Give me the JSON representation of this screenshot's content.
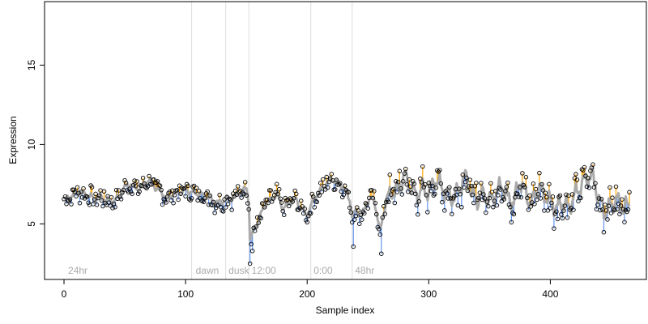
{
  "chart_data": {
    "type": "scatter",
    "xlabel": "Sample index",
    "ylabel": "Expression",
    "xlim": [
      -16,
      479
    ],
    "ylim": [
      1.5,
      19
    ],
    "xticks": [
      0,
      100,
      200,
      300,
      400
    ],
    "yticks": [
      5,
      10,
      15
    ],
    "grid": false,
    "colors": {
      "fit_line": "#aaaaaa",
      "residual_below": "#6495ed",
      "residual_above": "#ffa500",
      "vline": "#dddddd",
      "point_stroke": "#000000"
    },
    "vlines": [
      105,
      133,
      152,
      203,
      237
    ],
    "annotations": [
      {
        "text": "24hr",
        "x": 2
      },
      {
        "text": "dawn",
        "x": 107
      },
      {
        "text": "dusk",
        "x": 134
      },
      {
        "text": "12:00",
        "x": 153
      },
      {
        "text": "0:00",
        "x": 204
      },
      {
        "text": "48hr",
        "x": 238
      }
    ],
    "key_points": [
      [
        0,
        6.5
      ],
      [
        5,
        6.7
      ],
      [
        10,
        7.0
      ],
      [
        15,
        6.9
      ],
      [
        20,
        6.8
      ],
      [
        25,
        6.6
      ],
      [
        30,
        6.7
      ],
      [
        35,
        6.5
      ],
      [
        40,
        6.4
      ],
      [
        45,
        6.7
      ],
      [
        50,
        7.3
      ],
      [
        55,
        7.5
      ],
      [
        60,
        7.2
      ],
      [
        65,
        7.4
      ],
      [
        70,
        7.8
      ],
      [
        75,
        7.3
      ],
      [
        80,
        7.0
      ],
      [
        85,
        6.6
      ],
      [
        90,
        6.9
      ],
      [
        95,
        7.0
      ],
      [
        100,
        7.1
      ],
      [
        105,
        7.0
      ],
      [
        110,
        6.9
      ],
      [
        115,
        6.8
      ],
      [
        120,
        6.6
      ],
      [
        125,
        6.3
      ],
      [
        130,
        6.4
      ],
      [
        135,
        6.6
      ],
      [
        140,
        6.7
      ],
      [
        145,
        7.0
      ],
      [
        150,
        7.2
      ],
      [
        152,
        6.5
      ],
      [
        153,
        4.0
      ],
      [
        156,
        4.6
      ],
      [
        160,
        5.2
      ],
      [
        165,
        6.2
      ],
      [
        170,
        6.5
      ],
      [
        175,
        6.9
      ],
      [
        180,
        6.0
      ],
      [
        185,
        6.3
      ],
      [
        190,
        6.6
      ],
      [
        195,
        6.0
      ],
      [
        200,
        5.5
      ],
      [
        205,
        6.5
      ],
      [
        210,
        7.0
      ],
      [
        215,
        7.5
      ],
      [
        220,
        7.8
      ],
      [
        225,
        7.6
      ],
      [
        230,
        7.3
      ],
      [
        235,
        6.5
      ],
      [
        237,
        5.5
      ],
      [
        240,
        5.8
      ],
      [
        245,
        5.5
      ],
      [
        250,
        6.5
      ],
      [
        255,
        6.6
      ],
      [
        260,
        4.5
      ],
      [
        265,
        6.5
      ],
      [
        270,
        7.0
      ],
      [
        275,
        7.2
      ],
      [
        280,
        8.0
      ],
      [
        285,
        7.3
      ],
      [
        290,
        6.8
      ],
      [
        295,
        7.2
      ],
      [
        300,
        7.0
      ],
      [
        305,
        7.8
      ],
      [
        310,
        7.4
      ],
      [
        315,
        6.9
      ],
      [
        320,
        6.6
      ],
      [
        325,
        7.2
      ],
      [
        330,
        8.0
      ],
      [
        335,
        7.0
      ],
      [
        340,
        6.5
      ],
      [
        345,
        6.9
      ],
      [
        350,
        6.4
      ],
      [
        355,
        6.9
      ],
      [
        360,
        7.5
      ],
      [
        365,
        6.6
      ],
      [
        370,
        6.4
      ],
      [
        375,
        7.8
      ],
      [
        380,
        6.8
      ],
      [
        385,
        6.3
      ],
      [
        390,
        7.4
      ],
      [
        395,
        6.8
      ],
      [
        400,
        6.4
      ],
      [
        405,
        6.0
      ],
      [
        410,
        6.4
      ],
      [
        415,
        6.0
      ],
      [
        420,
        6.8
      ],
      [
        425,
        7.4
      ],
      [
        430,
        7.9
      ],
      [
        435,
        8.0
      ],
      [
        440,
        6.5
      ],
      [
        445,
        5.7
      ],
      [
        450,
        6.2
      ],
      [
        455,
        6.5
      ],
      [
        460,
        6.0
      ],
      [
        465,
        6.2
      ]
    ]
  }
}
